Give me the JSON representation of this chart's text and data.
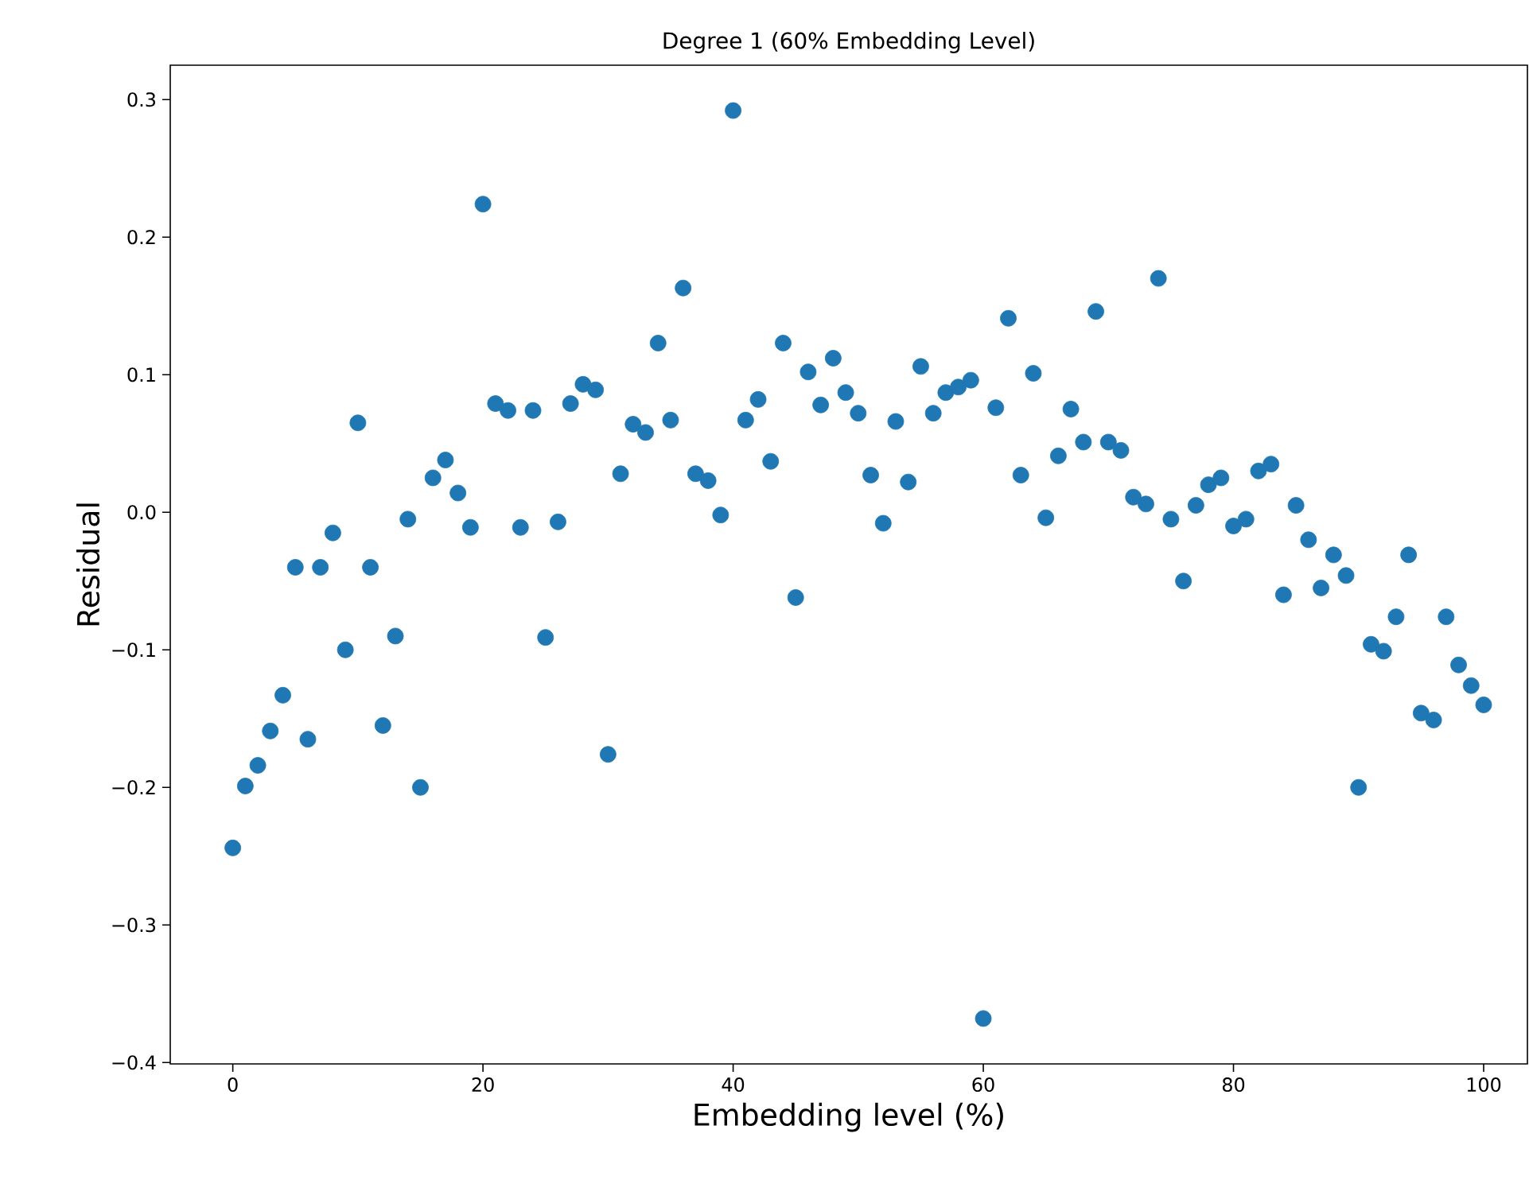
{
  "chart_data": {
    "type": "scatter",
    "title": "Degree 1 (60% Embedding Level)",
    "xlabel": "Embedding level (%)",
    "ylabel": "Residual",
    "x": [
      0,
      1,
      2,
      3,
      4,
      5,
      6,
      7,
      8,
      9,
      10,
      11,
      12,
      13,
      14,
      15,
      16,
      17,
      18,
      19,
      20,
      21,
      22,
      23,
      24,
      25,
      26,
      27,
      28,
      29,
      30,
      31,
      32,
      33,
      34,
      35,
      36,
      37,
      38,
      39,
      40,
      41,
      42,
      43,
      44,
      45,
      46,
      47,
      48,
      49,
      50,
      51,
      52,
      53,
      54,
      55,
      56,
      57,
      58,
      59,
      60,
      61,
      62,
      63,
      64,
      65,
      66,
      67,
      68,
      69,
      70,
      71,
      72,
      73,
      74,
      75,
      76,
      77,
      78,
      79,
      80,
      81,
      82,
      83,
      84,
      85,
      86,
      87,
      88,
      89,
      90,
      91,
      92,
      93,
      94,
      95,
      96,
      97,
      98,
      99,
      100
    ],
    "values": [
      -0.244,
      -0.199,
      -0.184,
      -0.159,
      -0.133,
      -0.04,
      -0.165,
      -0.04,
      -0.015,
      -0.1,
      0.065,
      -0.04,
      -0.155,
      -0.09,
      -0.005,
      -0.2,
      0.025,
      0.038,
      0.014,
      -0.011,
      0.224,
      0.079,
      0.074,
      -0.011,
      0.074,
      -0.091,
      -0.007,
      0.079,
      0.093,
      0.089,
      -0.176,
      0.028,
      0.064,
      0.058,
      0.123,
      0.067,
      0.163,
      0.028,
      0.023,
      -0.002,
      0.292,
      0.067,
      0.082,
      0.037,
      0.123,
      -0.062,
      0.102,
      0.078,
      0.112,
      0.087,
      0.072,
      0.027,
      -0.008,
      0.066,
      0.022,
      0.106,
      0.072,
      0.087,
      0.091,
      0.096,
      -0.368,
      0.076,
      0.141,
      0.027,
      0.101,
      -0.004,
      0.041,
      0.075,
      0.051,
      0.146,
      0.051,
      0.045,
      0.011,
      0.006,
      0.17,
      -0.005,
      -0.05,
      0.005,
      0.02,
      0.025,
      -0.01,
      -0.005,
      0.03,
      0.035,
      -0.06,
      0.005,
      -0.02,
      -0.055,
      -0.031,
      -0.046,
      -0.2,
      -0.096,
      -0.101,
      -0.076,
      -0.031,
      -0.146,
      -0.151,
      -0.076,
      -0.111,
      -0.126,
      -0.14
    ],
    "color": "#1f77b4",
    "marker": "circle",
    "xlim": [
      -5,
      103.5
    ],
    "ylim": [
      -0.401,
      0.325
    ],
    "xticks": [
      0,
      20,
      40,
      60,
      80,
      100
    ],
    "yticks": [
      {
        "value": -0.4,
        "label": "−0.4"
      },
      {
        "value": -0.3,
        "label": "−0.3"
      },
      {
        "value": -0.2,
        "label": "−0.2"
      },
      {
        "value": -0.1,
        "label": "−0.1"
      },
      {
        "value": 0,
        "label": "0.0"
      },
      {
        "value": 0.1,
        "label": "0.1"
      },
      {
        "value": 0.2,
        "label": "0.2"
      },
      {
        "value": 0.3,
        "label": "0.3"
      }
    ]
  }
}
